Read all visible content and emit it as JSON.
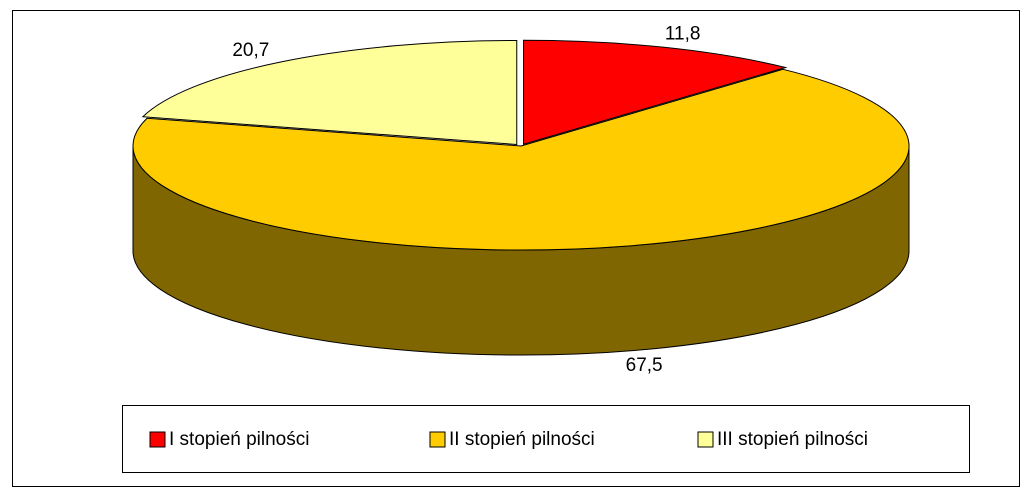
{
  "chart_data": {
    "type": "pie3d",
    "categories": [
      "I stopień pilności",
      "II stopień pilności",
      "III stopień pilności"
    ],
    "values": [
      11.8,
      67.5,
      20.7
    ],
    "value_labels": [
      "11,8",
      "67,5",
      "20,7"
    ],
    "colors": [
      "#ff0000",
      "#ffcc00",
      "#ffff99"
    ],
    "legend": "bottom"
  }
}
